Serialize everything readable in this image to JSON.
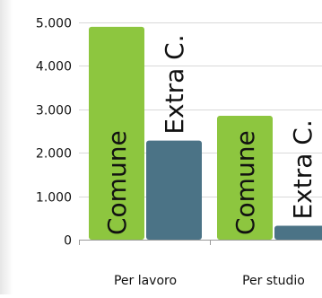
{
  "chart_data": {
    "type": "bar",
    "categories": [
      "Per lavoro",
      "Per studio"
    ],
    "series": [
      {
        "name": "Comune",
        "values": [
          4900,
          2850
        ],
        "color": "#8dc63f"
      },
      {
        "name": "Extra C.",
        "values": [
          2280,
          320
        ],
        "color": "#4b7386"
      }
    ],
    "bar_labels": [
      "Comune",
      "Extra C."
    ],
    "ylim": [
      0,
      5000
    ],
    "yticks": [
      0,
      1000,
      2000,
      3000,
      4000,
      5000
    ],
    "ytick_labels": [
      "0",
      "1.000",
      "2.000",
      "3.000",
      "4.000",
      "5.000"
    ],
    "grid": true,
    "legend": "none",
    "title": "",
    "xlabel": "",
    "ylabel": ""
  }
}
